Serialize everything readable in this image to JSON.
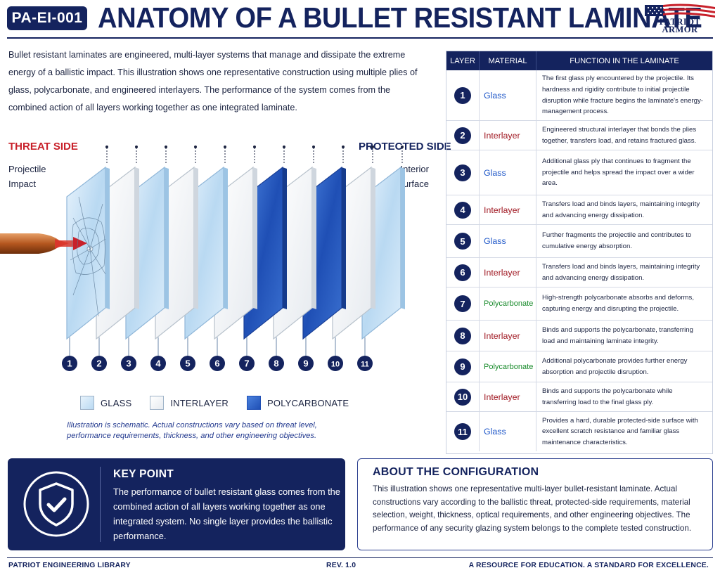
{
  "header": {
    "doc_id": "PA-EI-001",
    "title": "ANATOMY OF A BULLET RESISTANT LAMINATE",
    "logo_line1": "PATRIOT",
    "logo_line2": "ARMOR"
  },
  "intro": "Bullet resistant laminates are engineered, multi-layer systems that manage and dissipate the extreme energy of a ballistic impact. This illustration shows one representative construction using multiple plies of glass, polycarbonate, and engineered interlayers. The performance of the system comes from the combined action of all layers working together as one integrated laminate.",
  "illustration": {
    "threat_side": "THREAT SIDE",
    "protected_side": "PROTECTED SIDE",
    "projectile_impact": "Projectile Impact",
    "interior_surface": "Interior Surface",
    "layer_numbers": [
      "1",
      "2",
      "3",
      "4",
      "5",
      "6",
      "7",
      "8",
      "9",
      "10",
      "11"
    ],
    "layer_types": [
      "glass",
      "interlayer",
      "glass",
      "interlayer",
      "glass",
      "interlayer",
      "polycarbonate",
      "interlayer",
      "polycarbonate",
      "interlayer",
      "glass"
    ]
  },
  "legend": {
    "glass": "GLASS",
    "interlayer": "INTERLAYER",
    "polycarbonate": "POLYCARBONATE"
  },
  "note": "Illustration is schematic. Actual constructions vary based on threat level, performance requirements, thickness, and other engineering objectives.",
  "table": {
    "headers": [
      "LAYER",
      "MATERIAL",
      "FUNCTION IN THE LAMINATE"
    ],
    "rows": [
      {
        "layer": "1",
        "material": "Glass",
        "function": "The first glass ply encountered by the projectile. Its hardness and rigidity contribute to initial projectile disruption while fracture begins the laminate's energy-management process."
      },
      {
        "layer": "2",
        "material": "Interlayer",
        "function": "Engineered structural interlayer that bonds the plies together, transfers load, and retains fractured glass."
      },
      {
        "layer": "3",
        "material": "Glass",
        "function": "Additional glass ply that continues to fragment the projectile and helps spread the impact over a wider area."
      },
      {
        "layer": "4",
        "material": "Interlayer",
        "function": "Transfers load and binds layers, maintaining integrity and advancing energy dissipation."
      },
      {
        "layer": "5",
        "material": "Glass",
        "function": "Further fragments the projectile and contributes to cumulative energy absorption."
      },
      {
        "layer": "6",
        "material": "Interlayer",
        "function": "Transfers load and binds layers, maintaining integrity and advancing energy dissipation."
      },
      {
        "layer": "7",
        "material": "Polycarbonate",
        "function": "High-strength polycarbonate absorbs and deforms, capturing energy and disrupting the projectile."
      },
      {
        "layer": "8",
        "material": "Interlayer",
        "function": "Binds and supports the polycarbonate, transferring load and maintaining laminate integrity."
      },
      {
        "layer": "9",
        "material": "Polycarbonate",
        "function": "Additional polycarbonate provides further energy absorption and projectile disruption."
      },
      {
        "layer": "10",
        "material": "Interlayer",
        "function": "Binds and supports the polycarbonate while transferring load to the final glass ply."
      },
      {
        "layer": "11",
        "material": "Glass",
        "function": "Provides a hard, durable protected-side surface with excellent scratch resistance and familiar glass maintenance characteristics."
      }
    ]
  },
  "key_point": {
    "title": "KEY POINT",
    "text": "The performance of bullet resistant glass comes from the combined action of all layers working together as one integrated system. No single layer provides the ballistic performance."
  },
  "about": {
    "title": "ABOUT THE CONFIGURATION",
    "text": "This illustration shows one representative multi-layer bullet-resistant laminate. Actual constructions vary according to the ballistic threat, protected-side requirements, material selection, weight, thickness, optical requirements, and other engineering objectives. The performance of any security glazing system belongs to the complete tested construction."
  },
  "footer": {
    "left": "PATRIOT ENGINEERING LIBRARY",
    "center": "REV. 1.0",
    "right": "A RESOURCE FOR EDUCATION.  A STANDARD FOR EXCELLENCE."
  },
  "colors": {
    "navy": "#14235e",
    "glass": "#cfe5f7",
    "interlayer": "#f4f6f8",
    "polycarbonate": "#2a5fc4",
    "threat_red": "#c8202a"
  }
}
